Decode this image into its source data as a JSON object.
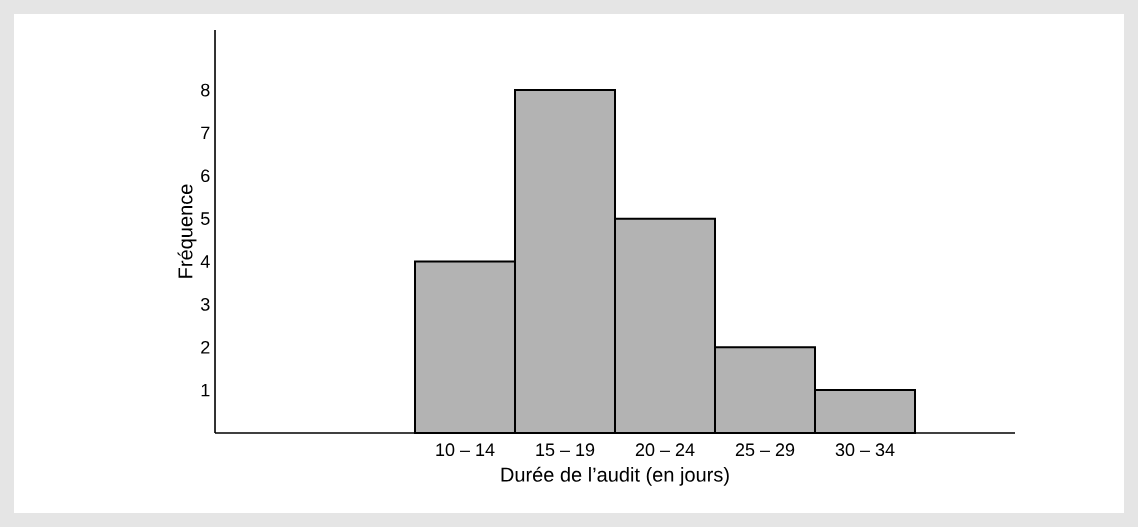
{
  "chart_data": {
    "type": "bar",
    "xlabel": "Durée de l’audit (en jours)",
    "ylabel": "Fréquence",
    "categories": [
      null,
      null,
      "10 – 14",
      "15 – 19",
      "20 – 24",
      "25 – 29",
      "30 – 34",
      null
    ],
    "values": [
      null,
      null,
      4,
      8,
      5,
      2,
      1,
      null
    ],
    "color": "#b3b3b3",
    "ylim": [
      0,
      9.4
    ],
    "yticks": [
      1,
      2,
      3,
      4,
      5,
      6,
      7,
      8
    ],
    "grid": false
  }
}
